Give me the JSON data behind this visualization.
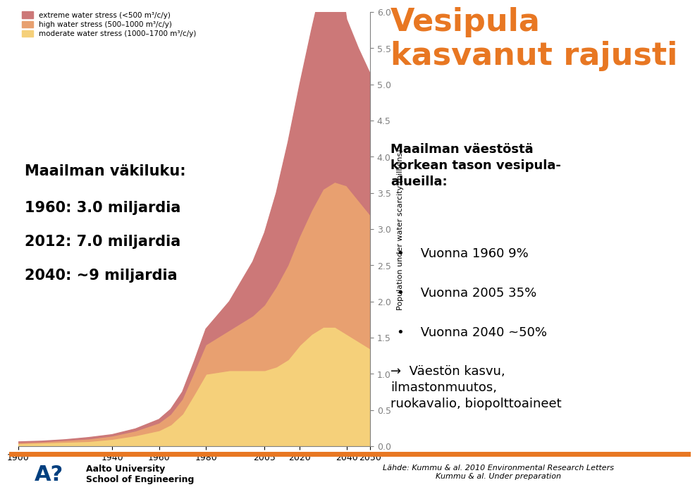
{
  "title_right": "Vesipula\nkasvanut rajusti",
  "title_color": "#E87722",
  "ylabel": "Population under water scarcity (billions)",
  "xlim": [
    1900,
    2050
  ],
  "ylim": [
    0,
    6
  ],
  "yticks": [
    0,
    0.5,
    1,
    1.5,
    2,
    2.5,
    3,
    3.5,
    4,
    4.5,
    5,
    5.5,
    6
  ],
  "xticks": [
    1900,
    1940,
    1960,
    1980,
    2005,
    2020,
    2040,
    2050
  ],
  "bg_color": "#ffffff",
  "years": [
    1900,
    1910,
    1920,
    1930,
    1940,
    1950,
    1960,
    1965,
    1970,
    1975,
    1980,
    1990,
    2000,
    2005,
    2010,
    2015,
    2020,
    2025,
    2030,
    2035,
    2040,
    2045,
    2050
  ],
  "moderate": [
    0.04,
    0.05,
    0.06,
    0.07,
    0.1,
    0.15,
    0.22,
    0.3,
    0.45,
    0.72,
    1.0,
    1.05,
    1.05,
    1.05,
    1.1,
    1.2,
    1.4,
    1.55,
    1.65,
    1.65,
    1.55,
    1.45,
    1.35
  ],
  "high": [
    0.01,
    0.01,
    0.02,
    0.03,
    0.04,
    0.06,
    0.1,
    0.14,
    0.2,
    0.3,
    0.4,
    0.55,
    0.75,
    0.9,
    1.1,
    1.3,
    1.5,
    1.7,
    1.9,
    2.0,
    2.05,
    1.95,
    1.85
  ],
  "extreme": [
    0.01,
    0.01,
    0.01,
    0.02,
    0.02,
    0.03,
    0.05,
    0.07,
    0.1,
    0.15,
    0.22,
    0.4,
    0.75,
    1.0,
    1.3,
    1.7,
    2.1,
    2.5,
    2.9,
    3.4,
    2.3,
    2.1,
    1.95
  ],
  "moderate_color": "#F5D07A",
  "high_color": "#E8A070",
  "extreme_color": "#CC7878",
  "legend_label_extreme": "extreme water stress (<500 m³/c/y)",
  "legend_label_high": "high water stress (500–1000 m³/c/y)",
  "legend_label_moderate": "moderate water stress (1000–1700 m³/c/y)",
  "left_text_title": "Maailman väkiluku:",
  "left_text_lines": [
    "1960: 3.0 miljardia",
    "2012: 7.0 miljardia",
    "2040: ~9 miljardia"
  ],
  "right_text_heading": "Maailman väestöstä\nkorkean tason vesipula-\nalueilla:",
  "right_bullets": [
    "Vuonna 1960 9%",
    "Vuonna 2005 35%",
    "Vuonna 2040 ~50%"
  ],
  "right_arrow_text": "→  Väestön kasvu,\nilmastonmuutos,\nruokavalio, biopolttoaineet",
  "source_text": "Lähde: Kummu & al. 2010 Environmental Research Letters\nKummu & al. Under preparation",
  "footer_line_color": "#E87722"
}
